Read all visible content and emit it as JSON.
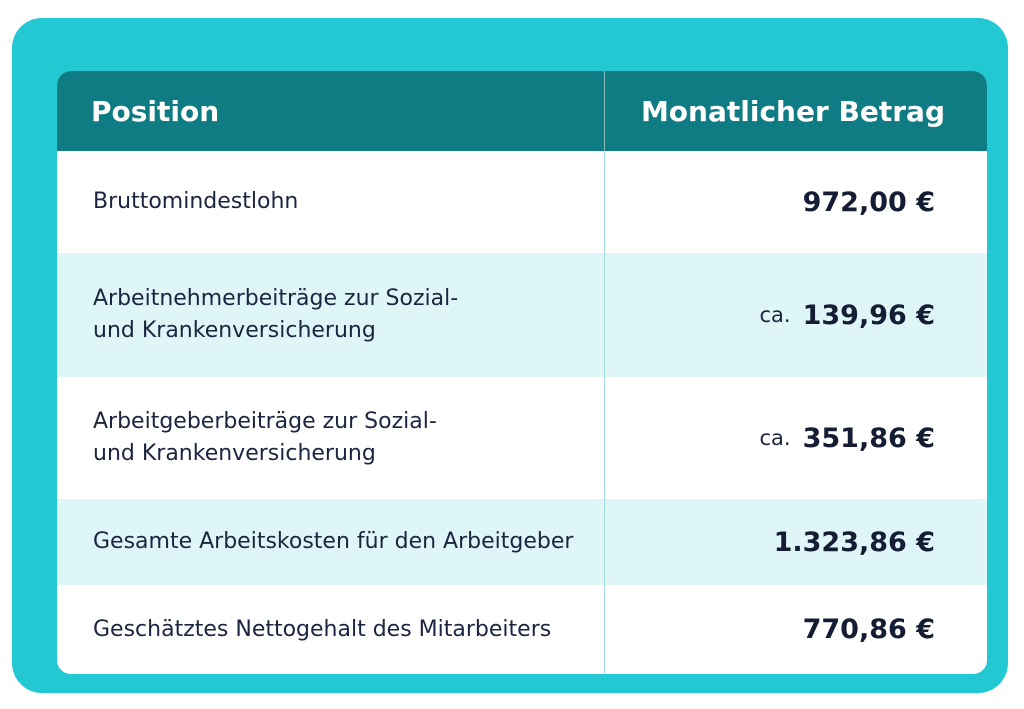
{
  "table": {
    "header": {
      "position": "Position",
      "amount": "Monatlicher Betrag"
    },
    "rows": [
      {
        "label_lines": [
          "Bruttomindestlohn"
        ],
        "prefix": "",
        "amount": "972,00 €"
      },
      {
        "label_lines": [
          "Arbeitnehmerbeiträge zur Sozial-",
          "und Krankenversicherung"
        ],
        "prefix": "ca.",
        "amount": "139,96 €"
      },
      {
        "label_lines": [
          "Arbeitgeberbeiträge zur Sozial-",
          "und Krankenversicherung"
        ],
        "prefix": "ca.",
        "amount": "351,86 €"
      },
      {
        "label_lines": [
          "Gesamte Arbeitskosten für den Arbeitgeber"
        ],
        "prefix": "",
        "amount": "1.323,86 €"
      },
      {
        "label_lines": [
          "Geschätztes Nettogehalt des Mitarbeiters"
        ],
        "prefix": "",
        "amount": "770,86 €"
      }
    ]
  },
  "colors": {
    "frame": "#22c9d3",
    "header": "#0f7b83",
    "row_alt": "#dff6f8",
    "text": "#1c2540"
  }
}
